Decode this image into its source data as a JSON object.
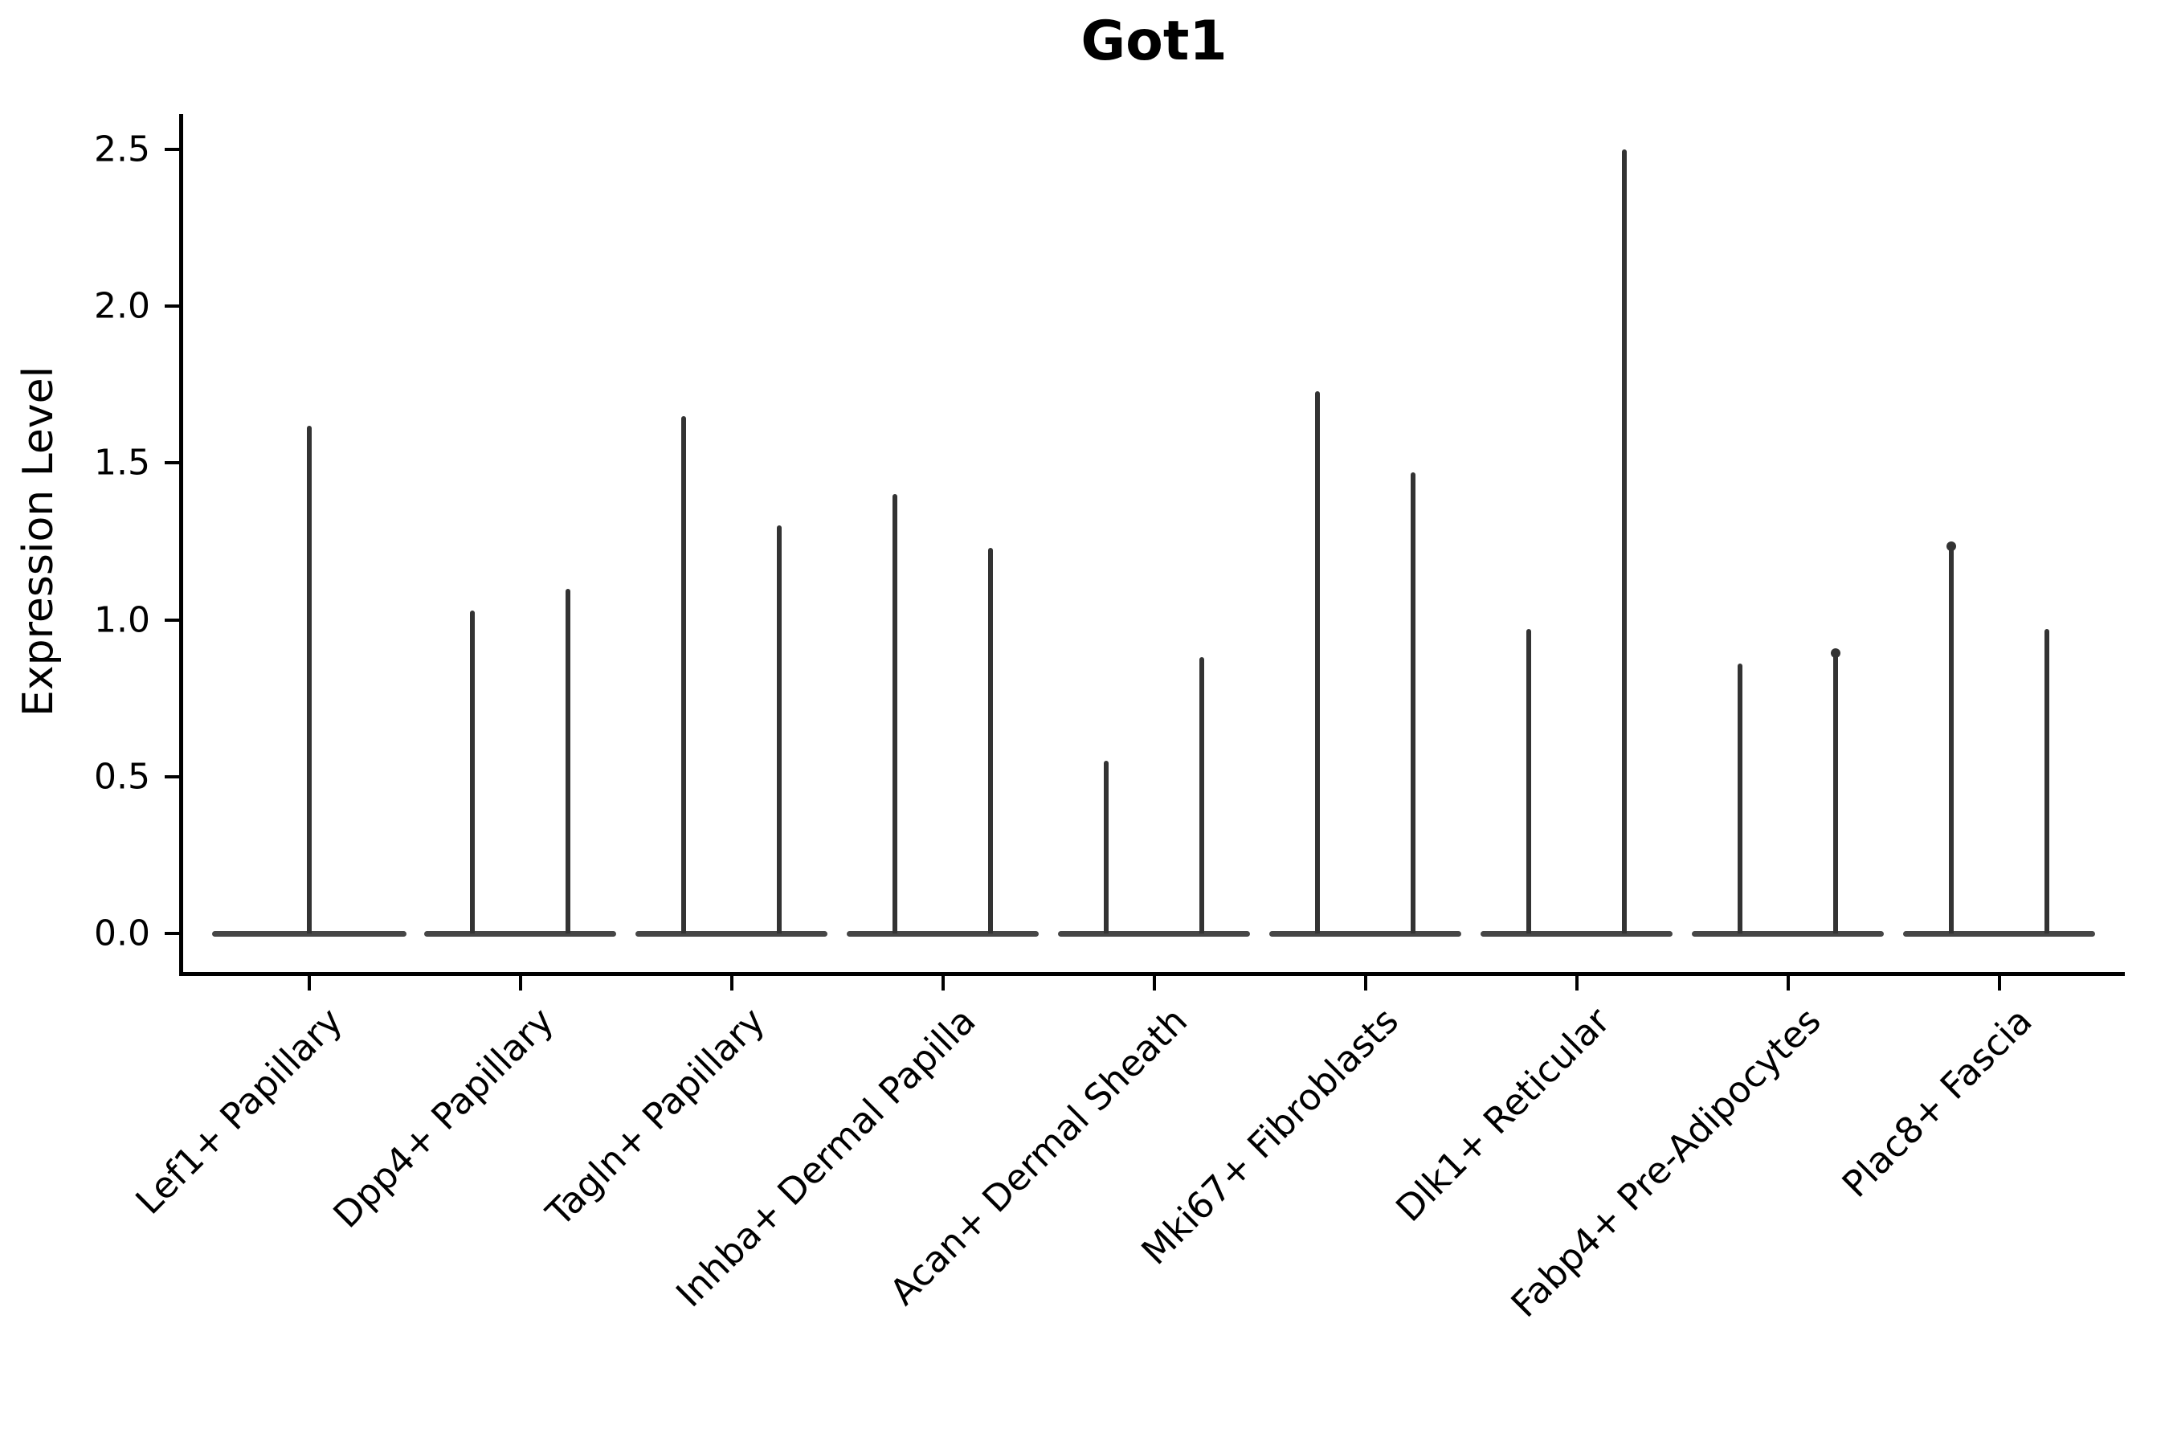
{
  "title": "Got1",
  "y_axis": {
    "label": "Expression Level",
    "tick_labels": [
      "0.0",
      "0.5",
      "1.0",
      "1.5",
      "2.0",
      "2.5"
    ],
    "tick_values": [
      0,
      0.5,
      1,
      1.5,
      2,
      2.5
    ]
  },
  "x_axis": {
    "categories": [
      "Lef1+ Papillary",
      "Dpp4+ Papillary",
      "Tagln+ Papillary",
      "Inhba+ Dermal Papilla",
      "Acan+ Dermal Sheath",
      "Mki67+ Fibroblasts",
      "Dlk1+ Reticular",
      "Fabp4+ Pre-Adipocytes",
      "Plac8+ Fascia"
    ],
    "label_rotation_deg": 45
  },
  "chart_data": {
    "type": "violin",
    "title": "Got1",
    "xlabel": "",
    "ylabel": "Expression Level",
    "ylim": [
      0,
      2.5
    ],
    "yticks": [
      0,
      0.5,
      1,
      1.5,
      2,
      2.5
    ],
    "grid": false,
    "legend": "none",
    "description": "Single-cell expression violin plot; expression mass concentrated at 0 for every group (wide flat base at y=0) with a hairline spike up to the maximum expression value; two groups per category except the first which has one full-width violin.",
    "categories": [
      "Lef1+ Papillary",
      "Dpp4+ Papillary",
      "Tagln+ Papillary",
      "Inhba+ Dermal Papilla",
      "Acan+ Dermal Sheath",
      "Mki67+ Fibroblasts",
      "Dlk1+ Reticular",
      "Fabp4+ Pre-Adipocytes",
      "Plac8+ Fascia"
    ],
    "series": [
      {
        "category": "Lef1+ Papillary",
        "violins": [
          {
            "group": 1,
            "max": 1.62,
            "point_at_max": false
          }
        ]
      },
      {
        "category": "Dpp4+ Papillary",
        "violins": [
          {
            "group": 1,
            "max": 1.03,
            "point_at_max": false
          },
          {
            "group": 2,
            "max": 1.1,
            "point_at_max": false
          }
        ]
      },
      {
        "category": "Tagln+ Papillary",
        "violins": [
          {
            "group": 1,
            "max": 1.65,
            "point_at_max": false
          },
          {
            "group": 2,
            "max": 1.3,
            "point_at_max": false
          }
        ]
      },
      {
        "category": "Inhba+ Dermal Papilla",
        "violins": [
          {
            "group": 1,
            "max": 1.4,
            "point_at_max": false
          },
          {
            "group": 2,
            "max": 1.23,
            "point_at_max": false
          }
        ]
      },
      {
        "category": "Acan+ Dermal Sheath",
        "violins": [
          {
            "group": 1,
            "max": 0.55,
            "point_at_max": false
          },
          {
            "group": 2,
            "max": 0.88,
            "point_at_max": false
          }
        ]
      },
      {
        "category": "Mki67+ Fibroblasts",
        "violins": [
          {
            "group": 1,
            "max": 1.73,
            "point_at_max": false
          },
          {
            "group": 2,
            "max": 1.47,
            "point_at_max": false
          }
        ]
      },
      {
        "category": "Dlk1+ Reticular",
        "violins": [
          {
            "group": 1,
            "max": 0.97,
            "point_at_max": false
          },
          {
            "group": 2,
            "max": 2.5,
            "point_at_max": false
          }
        ]
      },
      {
        "category": "Fabp4+ Pre-Adipocytes",
        "violins": [
          {
            "group": 1,
            "max": 0.86,
            "point_at_max": false
          },
          {
            "group": 2,
            "max": 0.9,
            "point_at_max": true
          }
        ]
      },
      {
        "category": "Plac8+ Fascia",
        "violins": [
          {
            "group": 1,
            "max": 1.24,
            "point_at_max": true
          },
          {
            "group": 2,
            "max": 0.97,
            "point_at_max": false
          }
        ]
      }
    ],
    "colors": {
      "violin_line": "#333333",
      "violin_base": "#464646",
      "axis": "#000000",
      "background": "#ffffff"
    }
  }
}
